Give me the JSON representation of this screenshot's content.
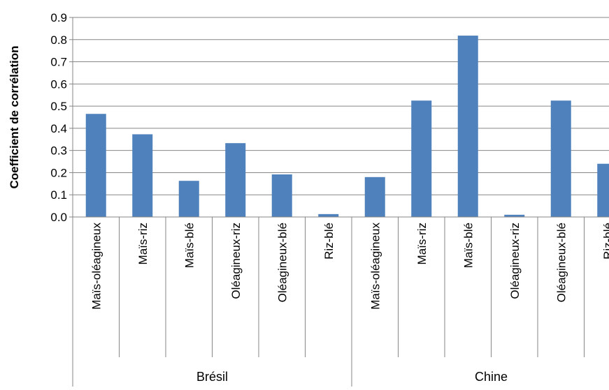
{
  "chart_data": {
    "type": "bar",
    "ylabel": "Coefficient de corrélation",
    "ylim": [
      0,
      0.9
    ],
    "y_ticks": [
      "0.0",
      "0.1",
      "0.2",
      "0.3",
      "0.4",
      "0.5",
      "0.6",
      "0.7",
      "0.8",
      "0.9"
    ],
    "grid": true,
    "bar_color": "#4f81bd",
    "groups": [
      {
        "name": "Brésil",
        "categories": [
          "Maïs-oléagineux",
          "Maïs-riz",
          "Maïs-blé",
          "Oléagineux-riz",
          "Oléagineux-blé",
          "Riz-blé"
        ],
        "values": [
          0.465,
          0.373,
          0.163,
          0.333,
          0.192,
          0.013
        ]
      },
      {
        "name": "Chine",
        "categories": [
          "Maïs-oléagineux",
          "Maïs-riz",
          "Maïs-blé",
          "Oléagineux-riz",
          "Oléagineux-blé",
          "Riz-blé"
        ],
        "values": [
          0.18,
          0.525,
          0.818,
          0.01,
          0.525,
          0.24
        ]
      }
    ]
  }
}
